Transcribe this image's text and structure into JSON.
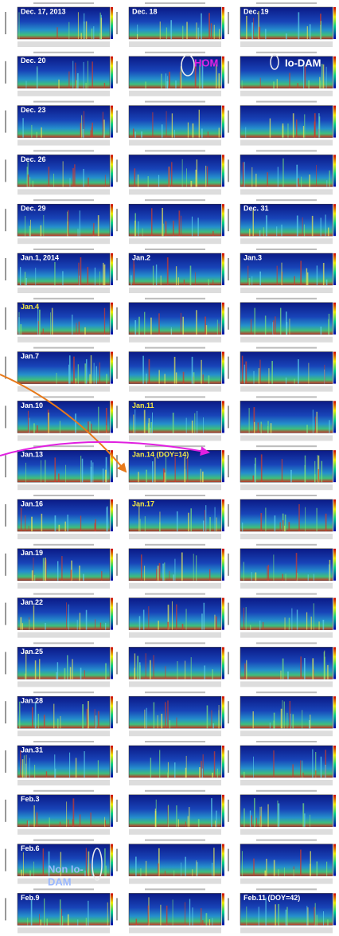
{
  "rows": [
    [
      "Dec. 17, 2013",
      "Dec. 18",
      "Dec. 19"
    ],
    [
      "Dec. 20",
      null,
      null
    ],
    [
      "Dec. 23",
      null,
      null
    ],
    [
      "Dec. 26",
      null,
      null
    ],
    [
      "Dec. 29",
      null,
      "Dec. 31"
    ],
    [
      "Jan.1, 2014",
      "Jan.2",
      "Jan.3"
    ],
    [
      "Jan.4",
      null,
      null
    ],
    [
      "Jan.7",
      null,
      null
    ],
    [
      "Jan.10",
      "Jan.11",
      null
    ],
    [
      "Jan.13",
      "Jan.14 (DOY=14)",
      null
    ],
    [
      "Jan.16",
      "Jan.17",
      null
    ],
    [
      "Jan.19",
      null,
      null
    ],
    [
      "Jan.22",
      null,
      null
    ],
    [
      "Jan.25",
      null,
      null
    ],
    [
      "Jan.28",
      null,
      null
    ],
    [
      "Jan.31",
      null,
      null
    ],
    [
      "Feb.3",
      null,
      null
    ],
    [
      "Feb.6",
      null,
      null
    ],
    [
      "Feb.9",
      null,
      "Feb.11 (DOY=42)"
    ]
  ],
  "annotations": {
    "hom": "HOM",
    "io_dam": "Io-DAM",
    "non_io_dam": [
      "Non Io-",
      "DAM"
    ]
  }
}
